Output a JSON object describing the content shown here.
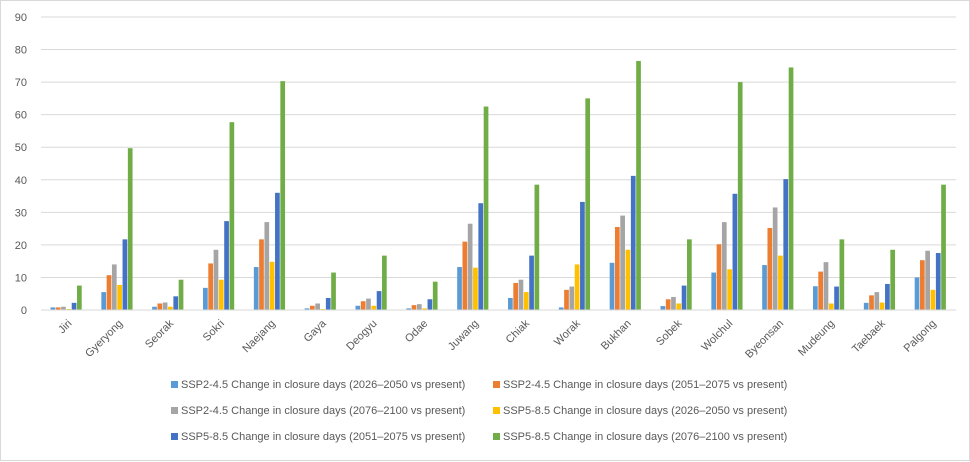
{
  "chart_data": {
    "type": "bar",
    "title": "",
    "xlabel": "",
    "ylabel": "",
    "ylim": [
      0,
      90
    ],
    "yticks": [
      0,
      10,
      20,
      30,
      40,
      50,
      60,
      70,
      80,
      90
    ],
    "grid": true,
    "legend_position": "bottom",
    "categories": [
      "Jiri",
      "Gyeryong",
      "Seorak",
      "Sokri",
      "Naejang",
      "Gaya",
      "Deogyu",
      "Odae",
      "Juwang",
      "Chiak",
      "Worak",
      "Bukhan",
      "Sobek",
      "Wolchul",
      "Byeonsan",
      "Mudeung",
      "Taebaek",
      "Palgong"
    ],
    "series": [
      {
        "name": "SSP2-4.5 Change in closure days (2026–2050 vs present)",
        "color": "#5b9bd5",
        "values": [
          0.8,
          5.5,
          1.0,
          6.8,
          13.2,
          0.5,
          1.3,
          0.5,
          13.2,
          3.7,
          0.8,
          14.5,
          1.2,
          11.5,
          13.8,
          7.3,
          2.2,
          10.0
        ]
      },
      {
        "name": "SSP2-4.5 Change in closure days (2051–2075 vs present)",
        "color": "#ed7d31",
        "values": [
          0.8,
          10.7,
          2.0,
          14.3,
          21.7,
          1.3,
          2.7,
          1.5,
          21.0,
          8.3,
          6.2,
          25.5,
          3.3,
          20.2,
          25.2,
          11.8,
          4.5,
          15.3
        ]
      },
      {
        "name": "SSP2-4.5 Change in closure days (2076–2100 vs present)",
        "color": "#a5a5a5",
        "values": [
          1.0,
          14.0,
          2.3,
          18.5,
          27.0,
          2.0,
          3.5,
          1.8,
          26.5,
          9.3,
          7.2,
          29.0,
          4.0,
          27.0,
          31.5,
          14.7,
          5.5,
          18.2
        ]
      },
      {
        "name": "SSP5-8.5 Change in closure days (2026–2050 vs present)",
        "color": "#ffc000",
        "values": [
          0.3,
          7.7,
          1.0,
          9.3,
          14.8,
          0.3,
          1.3,
          0.5,
          13.0,
          5.5,
          14.0,
          18.5,
          2.0,
          12.5,
          16.7,
          2.0,
          2.3,
          6.2
        ]
      },
      {
        "name": "SSP5-8.5 Change in closure days (2051–2075 vs present)",
        "color": "#4472c4",
        "values": [
          2.2,
          21.7,
          4.2,
          27.3,
          36.0,
          3.7,
          5.8,
          3.3,
          32.8,
          16.7,
          33.2,
          41.2,
          7.5,
          35.7,
          40.2,
          7.2,
          8.0,
          17.5
        ]
      },
      {
        "name": "SSP5-8.5 Change in closure days (2076–2100 vs present)",
        "color": "#70ad47",
        "values": [
          7.5,
          49.7,
          9.3,
          57.7,
          70.3,
          11.5,
          16.7,
          8.7,
          62.5,
          38.5,
          65.0,
          76.5,
          21.7,
          70.0,
          74.5,
          21.7,
          18.5,
          38.5
        ]
      }
    ]
  }
}
